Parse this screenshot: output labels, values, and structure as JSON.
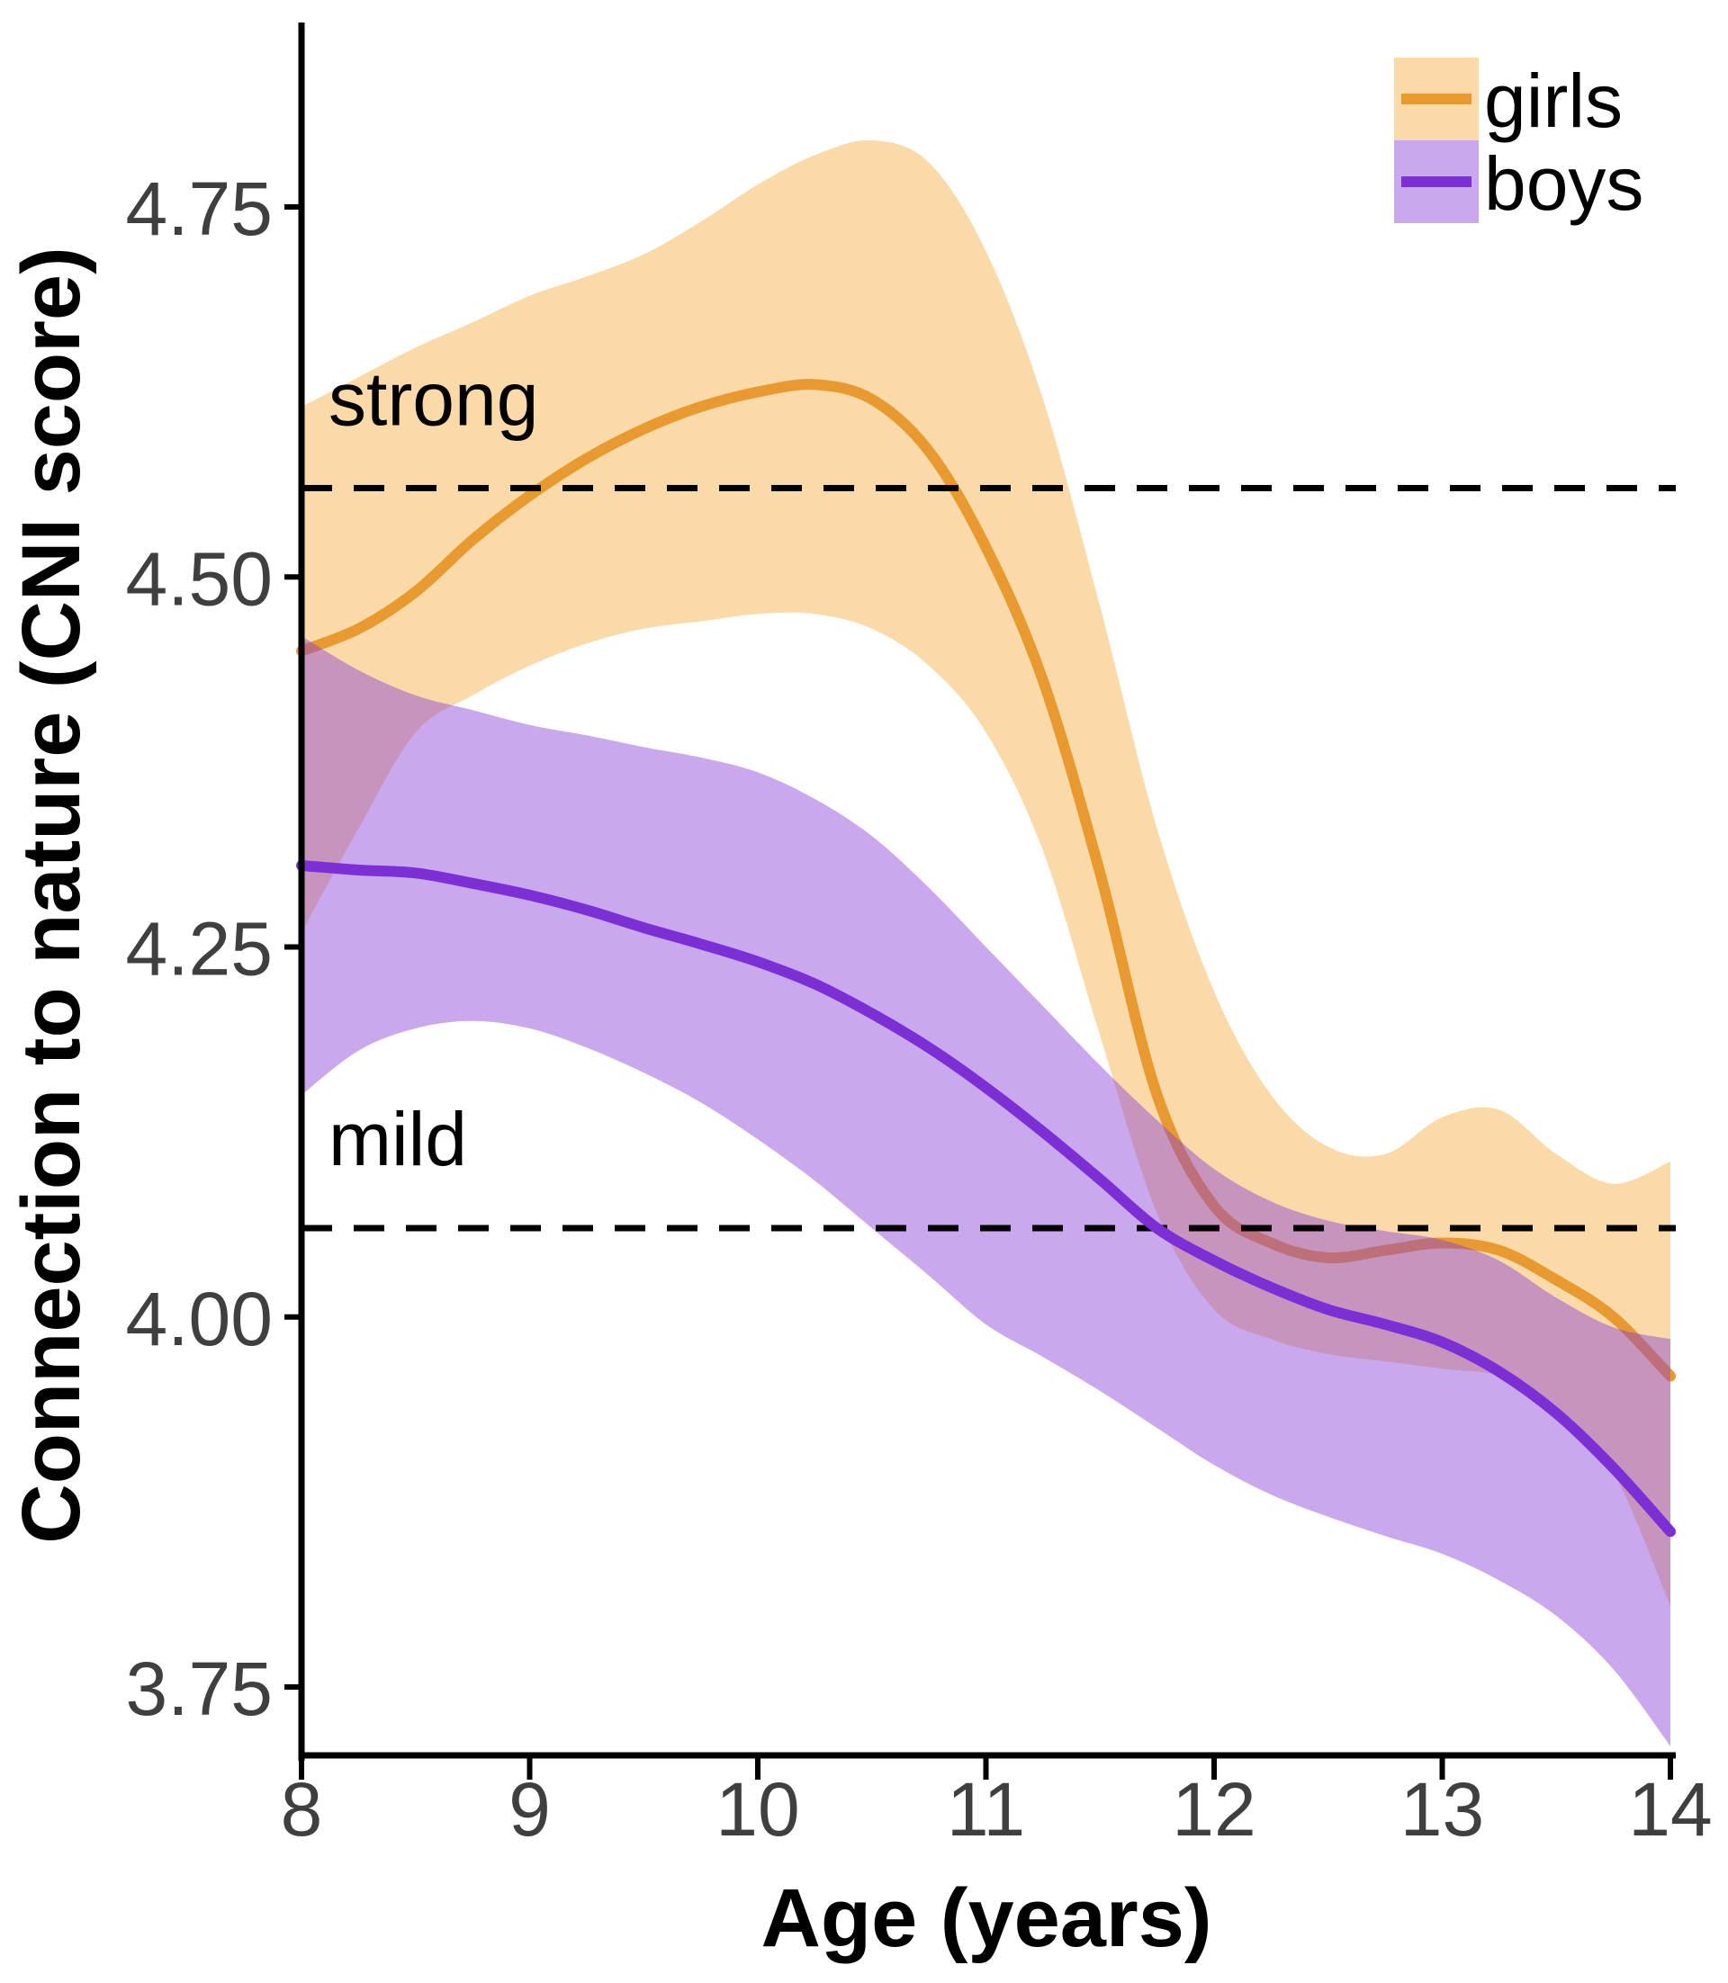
{
  "figure": {
    "background": "#FFFFFF",
    "axis_color": "#000000",
    "tick_label_color": "#3F3F3F"
  },
  "chart_data": {
    "type": "line",
    "title": "",
    "xlabel": "Age (years)",
    "ylabel": "Connection to nature (CNI score)",
    "xlim": [
      8,
      14
    ],
    "ylim": [
      3.7,
      4.87
    ],
    "grid": false,
    "legend_position": "top-right",
    "x_tick_values": [
      8,
      9,
      10,
      11,
      12,
      13,
      14
    ],
    "x_tick_labels": [
      "8",
      "9",
      "10",
      "11",
      "12",
      "13",
      "14"
    ],
    "y_tick_values": [
      4.75,
      4.5,
      4.25,
      4.0,
      3.75
    ],
    "y_tick_labels": [
      "4.75",
      "4.50",
      "4.25",
      "4.00",
      "3.75"
    ],
    "x": [
      8,
      8.25,
      8.5,
      8.75,
      9,
      9.25,
      9.5,
      9.75,
      10,
      10.25,
      10.5,
      10.75,
      11,
      11.25,
      11.5,
      11.75,
      12,
      12.25,
      12.5,
      12.75,
      13,
      13.25,
      13.5,
      13.75,
      14
    ],
    "series": [
      {
        "name": "girls",
        "line_color": "#E8992F",
        "ribbon_fill": "rgba(243,174,61,0.45)",
        "y": [
          4.45,
          4.465,
          4.49,
          4.525,
          4.555,
          4.58,
          4.6,
          4.615,
          4.625,
          4.63,
          4.62,
          4.585,
          4.52,
          4.43,
          4.3,
          4.15,
          4.075,
          4.05,
          4.04,
          4.045,
          4.05,
          4.045,
          4.025,
          4.0,
          3.96
        ],
        "upper": [
          4.615,
          4.635,
          4.655,
          4.672,
          4.69,
          4.703,
          4.718,
          4.74,
          4.765,
          4.785,
          4.795,
          4.78,
          4.72,
          4.62,
          4.48,
          4.33,
          4.22,
          4.15,
          4.115,
          4.11,
          4.135,
          4.14,
          4.11,
          4.09,
          4.105
        ],
        "lower": [
          4.26,
          4.33,
          4.395,
          4.42,
          4.44,
          4.455,
          4.465,
          4.47,
          4.475,
          4.475,
          4.465,
          4.44,
          4.395,
          4.315,
          4.19,
          4.07,
          4.005,
          3.985,
          3.975,
          3.97,
          3.965,
          3.96,
          3.94,
          3.895,
          3.805
        ]
      },
      {
        "name": "boys",
        "line_color": "#7B2FD4",
        "ribbon_fill": "rgba(138,63,214,0.45)",
        "y": [
          4.305,
          4.302,
          4.3,
          4.293,
          4.285,
          4.275,
          4.263,
          4.252,
          4.24,
          4.225,
          4.205,
          4.182,
          4.155,
          4.125,
          4.093,
          4.06,
          4.038,
          4.02,
          4.005,
          3.995,
          3.983,
          3.963,
          3.935,
          3.898,
          3.855
        ],
        "upper": [
          4.46,
          4.437,
          4.42,
          4.41,
          4.4,
          4.393,
          4.385,
          4.378,
          4.368,
          4.35,
          4.325,
          4.29,
          4.25,
          4.21,
          4.17,
          4.133,
          4.1,
          4.078,
          4.065,
          4.058,
          4.052,
          4.038,
          4.013,
          3.993,
          3.985
        ],
        "lower": [
          4.15,
          4.18,
          4.195,
          4.2,
          4.195,
          4.182,
          4.165,
          4.145,
          4.12,
          4.092,
          4.06,
          4.028,
          3.995,
          3.973,
          3.95,
          3.925,
          3.9,
          3.88,
          3.865,
          3.852,
          3.84,
          3.822,
          3.798,
          3.762,
          3.71
        ]
      }
    ],
    "thresholds": [
      {
        "label": "strong",
        "value": 4.56
      },
      {
        "label": "mild",
        "value": 4.06
      }
    ]
  },
  "legend": {
    "items": [
      {
        "label": "girls"
      },
      {
        "label": "boys"
      }
    ]
  }
}
